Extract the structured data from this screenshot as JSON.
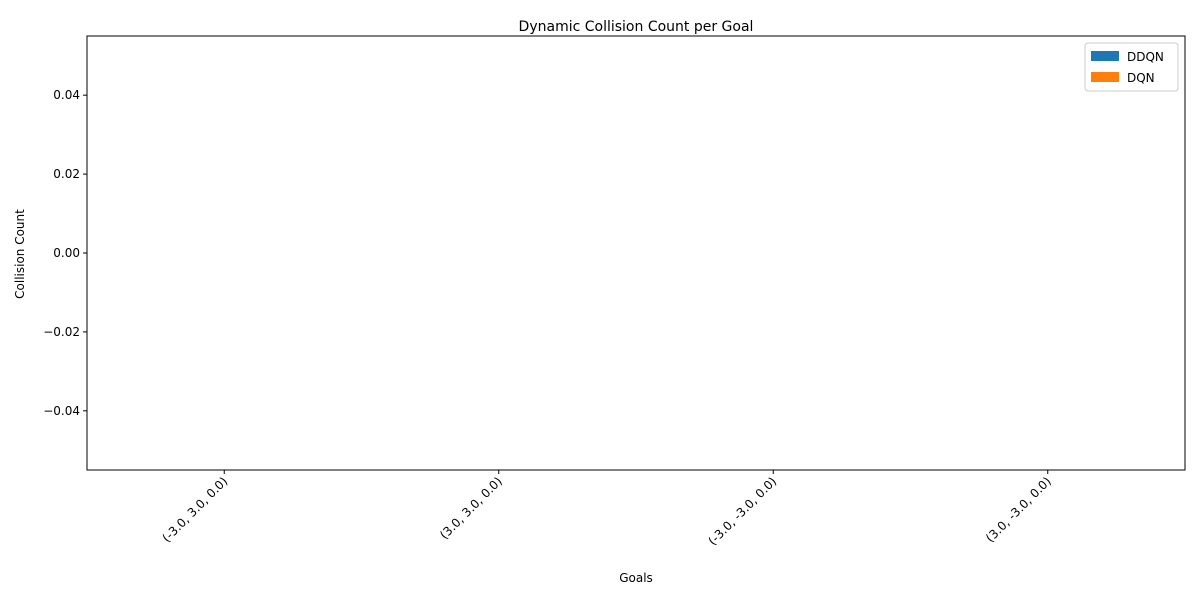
{
  "chart_data": {
    "type": "bar",
    "title": "Dynamic Collision Count per Goal",
    "xlabel": "Goals",
    "ylabel": "Collision Count",
    "categories": [
      "(-3.0, 3.0, 0.0)",
      "(3.0, 3.0, 0.0)",
      "(-3.0, -3.0, 0.0)",
      "(3.0, -3.0, 0.0)"
    ],
    "series": [
      {
        "name": "DDQN",
        "values": [
          0,
          0,
          0,
          0
        ],
        "color": "#1f77b4"
      },
      {
        "name": "DQN",
        "values": [
          0,
          0,
          0,
          0
        ],
        "color": "#ff7f0e"
      }
    ],
    "ylim": [
      -0.055,
      0.055
    ],
    "yticks": [
      -0.04,
      -0.02,
      0.0,
      0.02,
      0.04
    ],
    "ytick_labels": [
      "−0.04",
      "−0.02",
      "0.00",
      "0.02",
      "0.04"
    ],
    "grid": false,
    "legend_position": "top-right",
    "xtick_rotation": 45
  }
}
